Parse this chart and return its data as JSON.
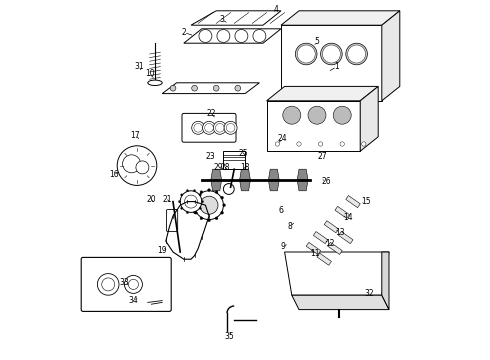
{
  "title": "",
  "background_color": "#ffffff",
  "line_color": "#000000",
  "label_color": "#000000",
  "fig_width": 4.9,
  "fig_height": 3.6,
  "dpi": 100,
  "labels": [
    [
      1,
      0.755,
      0.815,
      0.73,
      0.8
    ],
    [
      2,
      0.33,
      0.91,
      0.36,
      0.9
    ],
    [
      3,
      0.435,
      0.945,
      0.455,
      0.935
    ],
    [
      4,
      0.585,
      0.975,
      0.58,
      0.96
    ],
    [
      5,
      0.7,
      0.885,
      0.69,
      0.87
    ],
    [
      10,
      0.235,
      0.795,
      0.245,
      0.785
    ],
    [
      31,
      0.205,
      0.815,
      0.215,
      0.8
    ],
    [
      16,
      0.135,
      0.515,
      0.155,
      0.525
    ],
    [
      17,
      0.195,
      0.625,
      0.205,
      0.615
    ],
    [
      22,
      0.405,
      0.685,
      0.415,
      0.675
    ],
    [
      23,
      0.405,
      0.565,
      0.42,
      0.57
    ],
    [
      24,
      0.605,
      0.615,
      0.595,
      0.605
    ],
    [
      25,
      0.495,
      0.575,
      0.5,
      0.57
    ],
    [
      27,
      0.715,
      0.565,
      0.7,
      0.555
    ],
    [
      26,
      0.725,
      0.495,
      0.71,
      0.505
    ],
    [
      18,
      0.5,
      0.535,
      0.495,
      0.53
    ],
    [
      29,
      0.425,
      0.535,
      0.435,
      0.53
    ],
    [
      28,
      0.445,
      0.535,
      0.45,
      0.53
    ],
    [
      20,
      0.24,
      0.445,
      0.245,
      0.44
    ],
    [
      21,
      0.285,
      0.445,
      0.29,
      0.44
    ],
    [
      19,
      0.27,
      0.305,
      0.285,
      0.315
    ],
    [
      33,
      0.165,
      0.215,
      0.175,
      0.21
    ],
    [
      34,
      0.19,
      0.165,
      0.2,
      0.17
    ],
    [
      32,
      0.845,
      0.185,
      0.84,
      0.2
    ],
    [
      35,
      0.455,
      0.065,
      0.46,
      0.075
    ],
    [
      6,
      0.6,
      0.415,
      0.615,
      0.41
    ],
    [
      8,
      0.625,
      0.37,
      0.635,
      0.38
    ],
    [
      9,
      0.605,
      0.315,
      0.615,
      0.32
    ],
    [
      11,
      0.695,
      0.295,
      0.685,
      0.305
    ],
    [
      12,
      0.735,
      0.325,
      0.725,
      0.33
    ],
    [
      13,
      0.765,
      0.355,
      0.755,
      0.36
    ],
    [
      14,
      0.785,
      0.395,
      0.775,
      0.4
    ],
    [
      15,
      0.835,
      0.44,
      0.82,
      0.435
    ]
  ]
}
